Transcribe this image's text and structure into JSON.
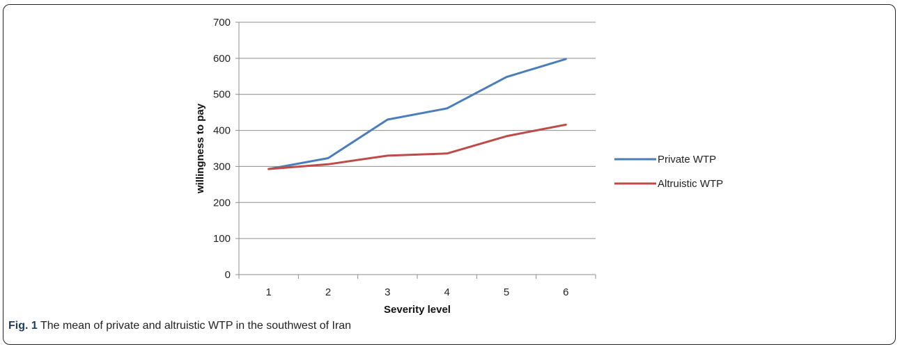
{
  "caption": {
    "label": "Fig. 1",
    "text": " The mean of private and altruistic WTP in the southwest of Iran"
  },
  "chart_data": {
    "type": "line",
    "title": "",
    "xlabel": "Severity level",
    "ylabel": "willingness to pay",
    "x": [
      1,
      2,
      3,
      4,
      5,
      6
    ],
    "ylim": [
      0,
      700
    ],
    "yticks": [
      0,
      100,
      200,
      300,
      400,
      500,
      600,
      700
    ],
    "grid": true,
    "legend_position": "right",
    "series": [
      {
        "name": "Private WTP",
        "color": "#4a7ebb",
        "values": [
          293,
          323,
          430,
          461,
          548,
          598
        ]
      },
      {
        "name": "Altruistic WTP",
        "color": "#be4b48",
        "values": [
          293,
          306,
          330,
          336,
          384,
          416
        ]
      }
    ]
  }
}
